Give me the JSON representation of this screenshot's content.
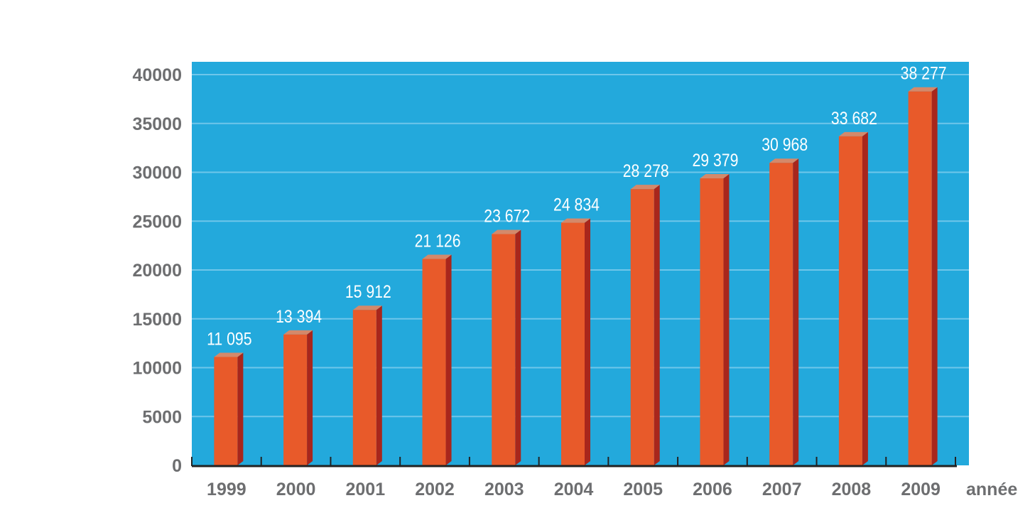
{
  "chart_data": {
    "type": "bar",
    "title": "",
    "xlabel": "année",
    "ylabel": "",
    "categories": [
      "1999",
      "2000",
      "2001",
      "2002",
      "2003",
      "2004",
      "2005",
      "2006",
      "2007",
      "2008",
      "2009"
    ],
    "values": [
      11095,
      13394,
      15912,
      21126,
      23672,
      24834,
      28278,
      29379,
      30968,
      33682,
      38277
    ],
    "data_labels": [
      "11 095",
      "13 394",
      "15 912",
      "21 126",
      "23 672",
      "24 834",
      "28 278",
      "29 379",
      "30 968",
      "33 682",
      "38 277"
    ],
    "yticks": [
      "0",
      "5000",
      "10000",
      "15000",
      "20000",
      "25000",
      "30000",
      "35000",
      "40000"
    ],
    "ylim": [
      0,
      40000
    ],
    "grid": true,
    "style": "3d-bar",
    "colors": {
      "plot_bg": "#23a9dc",
      "grid": "#6fc6ea",
      "bar_front": "#e85a2a",
      "bar_side": "#a8261c",
      "bar_top": "#d4896a",
      "axis": "#222222",
      "tick_text": "#6d6e70",
      "label_text": "#ffffff"
    }
  }
}
